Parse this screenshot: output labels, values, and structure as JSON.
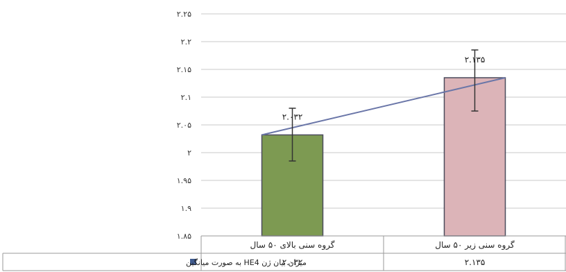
{
  "chart_data": {
    "type": "bar",
    "categories": [
      "گروه سنی بالای ۵۰ سال",
      "گروه سنی زیر ۵۰ سال"
    ],
    "series": [
      {
        "name": "میزان بیان ژن HE4 به صورت میانگین",
        "values": [
          2.032,
          2.135
        ],
        "value_labels": [
          "۲.۰۳۲",
          "۲.۱۳۵"
        ],
        "error_low": [
          1.985,
          2.075
        ],
        "error_high": [
          2.08,
          2.185
        ]
      }
    ],
    "ylim": [
      1.85,
      2.25
    ],
    "y_ticks": [
      {
        "value": 1.85,
        "label": "۱.۸۵"
      },
      {
        "value": 1.9,
        "label": "۱.۹"
      },
      {
        "value": 1.95,
        "label": "۱.۹۵"
      },
      {
        "value": 2.0,
        "label": "۲"
      },
      {
        "value": 2.05,
        "label": "۲.۰۵"
      },
      {
        "value": 2.1,
        "label": "۲.۱"
      },
      {
        "value": 2.15,
        "label": "۲.۱۵"
      },
      {
        "value": 2.2,
        "label": "۲.۲"
      },
      {
        "value": 2.25,
        "label": "۲.۲۵"
      }
    ],
    "grid": true,
    "legend": "data-table",
    "colors": {
      "bars": [
        "#7d9a52",
        "#dcb4b8"
      ],
      "bar_border": "#4b4b5c",
      "trend_line": "#6a76a8",
      "legend_marker": "#3f5b8f"
    }
  }
}
